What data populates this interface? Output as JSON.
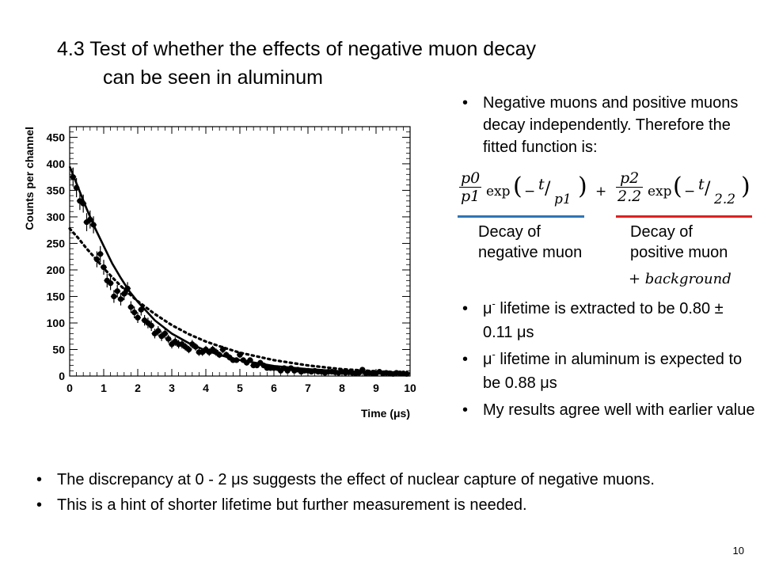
{
  "slide": {
    "title_line1": "4.3  Test of whether the effects of negative muon decay",
    "title_line2": "can be seen in aluminum",
    "page_number": "10"
  },
  "right_bullets": {
    "b1": "Negative muons and positive muons decay independently. Therefore the fitted function is:",
    "b2_pre": "μ",
    "b2_sup": "-",
    "b2_post": " lifetime is extracted to be 0.80 ± 0.11 μs",
    "b3_pre": "μ",
    "b3_sup": "-",
    "b3_post": " lifetime in aluminum is expected to be 0.88 μs",
    "b4": "My results agree well with earlier value"
  },
  "formula": {
    "t1_num": "p0",
    "t1_den": "p1",
    "exp1": "exp",
    "arg1": "−",
    "t1_slash_num": "t",
    "t1_slash_den": "p1",
    "plus": "+",
    "t2_num": "p2",
    "t2_den": "2.2",
    "exp2": "exp",
    "arg2": "−",
    "t2_slash_num": "t",
    "t2_slash_den": "2.2",
    "label_negative_line1": "Decay of",
    "label_negative_line2": "negative muon",
    "label_positive_line1": "Decay of",
    "label_positive_line2": "positive muon",
    "background": "+ background",
    "underline_negative_color": "#2E75B6",
    "underline_positive_color": "#E02020"
  },
  "bottom_bullets": {
    "b1": "The discrepancy at 0 - 2 μs suggests the effect of nuclear capture of negative muons.",
    "b2": "This is a hint of shorter lifetime but further measurement is needed."
  },
  "chart_data": {
    "type": "scatter",
    "title": "",
    "xlabel": "Time  (μs)",
    "ylabel": "Counts per channel",
    "xlim": [
      0,
      10
    ],
    "ylim": [
      0,
      470
    ],
    "x_ticks": [
      0,
      1,
      2,
      3,
      4,
      5,
      6,
      7,
      8,
      9,
      10
    ],
    "y_ticks": [
      0,
      50,
      100,
      150,
      200,
      250,
      300,
      350,
      400,
      450
    ],
    "grid": false,
    "points": {
      "x": [
        0.1,
        0.2,
        0.3,
        0.4,
        0.5,
        0.6,
        0.7,
        0.8,
        0.9,
        1.0,
        1.1,
        1.2,
        1.3,
        1.4,
        1.5,
        1.6,
        1.7,
        1.8,
        1.9,
        2.0,
        2.1,
        2.2,
        2.3,
        2.4,
        2.5,
        2.6,
        2.7,
        2.8,
        2.9,
        3.0,
        3.1,
        3.2,
        3.3,
        3.4,
        3.5,
        3.6,
        3.7,
        3.8,
        3.9,
        4.0,
        4.1,
        4.2,
        4.3,
        4.4,
        4.5,
        4.6,
        4.7,
        4.8,
        4.9,
        5.0,
        5.1,
        5.2,
        5.3,
        5.4,
        5.5,
        5.6,
        5.7,
        5.8,
        5.9,
        6.0,
        6.1,
        6.2,
        6.3,
        6.4,
        6.5,
        6.6,
        6.7,
        6.8,
        6.9,
        7.0,
        7.1,
        7.2,
        7.3,
        7.4,
        7.5,
        7.6,
        7.7,
        7.8,
        7.9,
        8.0,
        8.1,
        8.2,
        8.3,
        8.4,
        8.5,
        8.6,
        8.7,
        8.8,
        8.9,
        9.0,
        9.1,
        9.2,
        9.3,
        9.4,
        9.5,
        9.6,
        9.7,
        9.8,
        9.9
      ],
      "y": [
        375,
        355,
        330,
        325,
        290,
        295,
        285,
        220,
        230,
        205,
        180,
        175,
        150,
        160,
        145,
        155,
        165,
        130,
        120,
        110,
        125,
        105,
        100,
        95,
        80,
        85,
        75,
        80,
        70,
        60,
        65,
        60,
        60,
        55,
        50,
        60,
        55,
        45,
        45,
        50,
        45,
        50,
        45,
        40,
        50,
        40,
        35,
        30,
        30,
        40,
        30,
        25,
        30,
        20,
        20,
        25,
        20,
        15,
        15,
        15,
        15,
        10,
        15,
        10,
        15,
        10,
        12,
        8,
        10,
        10,
        8,
        10,
        8,
        8,
        6,
        8,
        8,
        7,
        6,
        8,
        6,
        7,
        6,
        5,
        6,
        12,
        5,
        6,
        5,
        5,
        8,
        5,
        6,
        5,
        4,
        6,
        5,
        5,
        4
      ],
      "err": [
        18,
        18,
        17,
        17,
        17,
        17,
        16,
        15,
        15,
        14,
        13,
        13,
        12,
        12,
        12,
        12,
        12,
        11,
        11,
        10,
        11,
        10,
        10,
        10,
        9,
        9,
        9,
        9,
        8,
        8,
        8,
        8,
        8,
        7,
        7,
        8,
        7,
        7,
        7,
        7,
        7,
        7,
        7,
        6,
        7,
        6,
        6,
        5,
        5,
        6,
        5,
        5,
        5,
        4,
        4,
        5,
        4,
        4,
        4,
        4,
        4,
        3,
        4,
        3,
        4,
        3,
        3,
        3,
        3,
        3,
        3,
        3,
        3,
        3,
        2,
        3,
        3,
        3,
        2,
        3,
        2,
        3,
        2,
        2,
        2,
        3,
        2,
        2,
        2,
        2,
        3,
        2,
        2,
        2,
        2,
        2,
        2,
        2,
        2
      ]
    },
    "fit_solid": {
      "x": [
        0,
        0.25,
        0.5,
        0.75,
        1.0,
        1.25,
        1.5,
        1.75,
        2.0,
        2.5,
        3.0,
        3.5,
        4.0,
        4.5,
        5.0,
        6.0,
        7.0,
        8.0,
        9.0,
        10.0
      ],
      "y": [
        395,
        355,
        315,
        278,
        245,
        212,
        185,
        160,
        140,
        105,
        80,
        62,
        48,
        38,
        30,
        19,
        13,
        9,
        7,
        5
      ]
    },
    "fit_dotted": {
      "x": [
        0,
        0.25,
        0.5,
        0.75,
        1.0,
        1.25,
        1.5,
        1.75,
        2.0,
        2.5,
        3.0,
        3.5,
        4.0,
        4.5,
        5.0,
        6.0,
        7.0,
        8.0,
        9.0,
        10.0
      ],
      "y": [
        278,
        260,
        240,
        222,
        203,
        186,
        170,
        155,
        141,
        117,
        96,
        79,
        65,
        54,
        44,
        30,
        20,
        13,
        9,
        6
      ]
    }
  }
}
